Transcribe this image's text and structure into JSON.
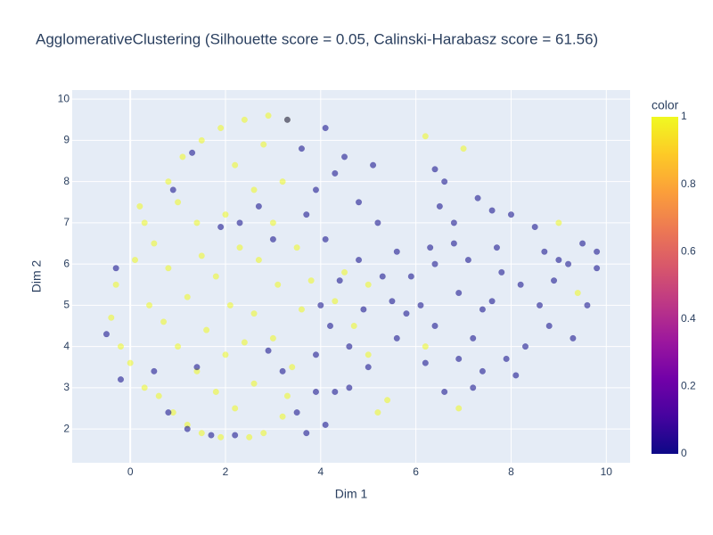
{
  "chart_data": {
    "type": "scatter",
    "title": "AgglomerativeClustering (Silhouette score = 0.05, Calinski-Harabasz score = 61.56)",
    "x_label": "Dim 1",
    "y_label": "Dim 2",
    "colorbar_title": "color",
    "x": [
      0.2,
      0.3,
      0.5,
      0.1,
      -0.3,
      -0.4,
      -0.2,
      0.0,
      0.3,
      0.6,
      0.9,
      1.2,
      1.5,
      1.9,
      2.5,
      2.8,
      3.2,
      0.8,
      1.1,
      1.5,
      1.9,
      2.4,
      2.9,
      3.3,
      1.0,
      1.4,
      0.8,
      1.2,
      0.7,
      1.0,
      1.4,
      1.8,
      2.2,
      2.6,
      2.0,
      1.6,
      2.1,
      1.8,
      2.3,
      2.0,
      2.6,
      2.2,
      2.8,
      3.2,
      3.0,
      2.7,
      3.1,
      2.6,
      3.0,
      3.4,
      3.3,
      3.6,
      3.8,
      3.5,
      4.3,
      4.7,
      5.0,
      5.4,
      5.2,
      6.2,
      6.9,
      7.0,
      6.2,
      9.0,
      9.4,
      4.5,
      5.0,
      0.4,
      1.5,
      2.4,
      -0.5,
      -0.2,
      -0.3,
      0.8,
      1.2,
      1.7,
      3.7,
      4.1,
      3.9,
      4.3,
      3.2,
      3.9,
      4.2,
      4.6,
      5.0,
      4.0,
      4.4,
      4.8,
      4.1,
      3.7,
      3.9,
      4.3,
      3.6,
      4.1,
      4.5,
      5.1,
      4.8,
      5.2,
      5.6,
      5.3,
      5.8,
      5.6,
      4.9,
      5.9,
      6.3,
      6.8,
      7.3,
      6.6,
      6.4,
      6.9,
      7.4,
      7.2,
      7.9,
      8.3,
      8.8,
      9.3,
      9.6,
      9.8,
      9.5,
      9.0,
      8.5,
      8.0,
      7.7,
      7.1,
      8.2,
      8.6,
      7.6,
      6.4,
      6.2,
      6.6,
      7.2,
      8.1,
      7.4,
      6.9,
      8.9,
      9.2,
      6.8,
      3.3,
      1.3,
      0.9,
      2.7,
      2.3,
      1.9,
      3.0,
      5.5,
      6.1,
      7.6,
      7.8,
      8.7,
      9.8,
      6.4,
      6.5,
      4.6,
      3.5,
      2.9,
      1.4,
      2.2,
      0.5
    ],
    "y": [
      7.4,
      7.0,
      6.5,
      6.1,
      5.5,
      4.7,
      4.0,
      3.6,
      3.0,
      2.8,
      2.4,
      2.1,
      1.9,
      1.8,
      1.8,
      1.9,
      2.3,
      8.0,
      8.6,
      9.0,
      9.3,
      9.5,
      9.6,
      9.5,
      7.5,
      7.0,
      5.9,
      5.2,
      4.6,
      4.0,
      3.4,
      2.9,
      2.5,
      3.1,
      3.8,
      4.4,
      5.0,
      5.7,
      6.4,
      7.2,
      7.8,
      8.4,
      8.9,
      8.0,
      7.0,
      6.1,
      5.5,
      4.8,
      4.2,
      3.5,
      2.8,
      4.9,
      5.6,
      6.4,
      5.1,
      4.5,
      3.8,
      2.7,
      2.4,
      4.0,
      2.5,
      8.8,
      9.1,
      7.0,
      5.3,
      5.8,
      5.5,
      5.0,
      6.2,
      4.1,
      4.3,
      3.2,
      5.9,
      2.4,
      2.0,
      1.85,
      1.9,
      2.1,
      2.9,
      2.9,
      3.4,
      3.8,
      4.5,
      4.0,
      3.5,
      5.0,
      5.6,
      6.1,
      6.6,
      7.2,
      7.8,
      8.2,
      8.8,
      9.3,
      8.6,
      8.4,
      7.5,
      7.0,
      6.3,
      5.7,
      4.8,
      4.2,
      4.9,
      5.7,
      6.4,
      7.0,
      7.6,
      8.0,
      6.0,
      5.3,
      4.9,
      4.2,
      3.7,
      4.0,
      4.5,
      4.2,
      5.0,
      5.9,
      6.5,
      6.1,
      6.9,
      7.2,
      6.4,
      6.1,
      5.5,
      5.0,
      5.1,
      4.5,
      3.6,
      2.9,
      3.0,
      3.3,
      3.4,
      3.7,
      5.6,
      6.0,
      6.5,
      9.5,
      8.7,
      7.8,
      7.4,
      7.0,
      6.9,
      6.6,
      5.1,
      5.0,
      7.3,
      5.8,
      6.3,
      6.3,
      8.3,
      7.4,
      3.0,
      2.4,
      3.9,
      3.5,
      1.85,
      3.4
    ],
    "color": [
      1,
      1,
      1,
      1,
      1,
      1,
      1,
      1,
      1,
      1,
      1,
      1,
      1,
      1,
      1,
      1,
      1,
      1,
      1,
      1,
      1,
      1,
      1,
      1,
      1,
      1,
      1,
      1,
      1,
      1,
      1,
      1,
      1,
      1,
      1,
      1,
      1,
      1,
      1,
      1,
      1,
      1,
      1,
      1,
      1,
      1,
      1,
      1,
      1,
      1,
      1,
      1,
      1,
      1,
      1,
      1,
      1,
      1,
      1,
      1,
      1,
      1,
      1,
      1,
      1,
      1,
      1,
      1,
      1,
      1,
      0,
      0,
      0,
      0,
      0,
      0,
      0,
      0,
      0,
      0,
      0,
      0,
      0,
      0,
      0,
      0,
      0,
      0,
      0,
      0,
      0,
      0,
      0,
      0,
      0,
      0,
      0,
      0,
      0,
      0,
      0,
      0,
      0,
      0,
      0,
      0,
      0,
      0,
      0,
      0,
      0,
      0,
      0,
      0,
      0,
      0,
      0,
      0,
      0,
      0,
      0,
      0,
      0,
      0,
      0,
      0,
      0,
      0,
      0,
      0,
      0,
      0,
      0,
      0,
      0,
      0,
      0,
      0,
      0,
      0,
      0,
      0,
      0,
      0,
      0,
      0,
      0,
      0,
      0,
      0,
      0,
      0,
      0,
      0,
      0,
      0,
      0,
      0
    ],
    "colorscale": [
      "#0d0887",
      "#46039f",
      "#7201a8",
      "#9c179e",
      "#bd3786",
      "#d8576b",
      "#ed7953",
      "#fb9f3a",
      "#fdca26",
      "#f0f921"
    ],
    "color_range": [
      0,
      1
    ],
    "colorbar_ticks": [
      0,
      0.2,
      0.4,
      0.6,
      0.8,
      1
    ],
    "xlim": [
      -1.22,
      10.5
    ],
    "xticks": [
      0,
      2,
      4,
      6,
      8,
      10
    ],
    "ylim": [
      1.18,
      10.22
    ],
    "yticks": [
      2,
      3,
      4,
      5,
      6,
      7,
      8,
      9,
      10
    ],
    "grid": true
  }
}
